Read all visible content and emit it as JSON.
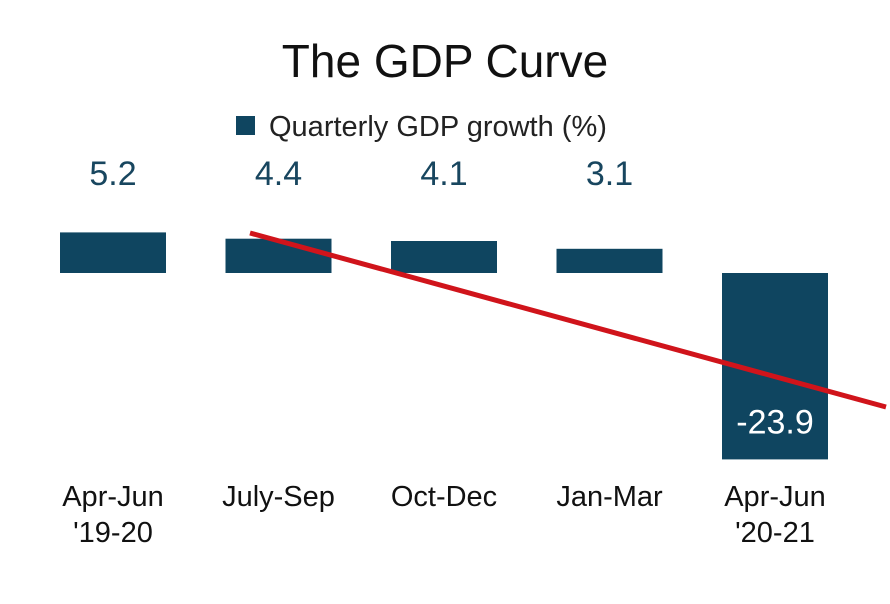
{
  "chart_data": {
    "type": "bar",
    "title": "The GDP Curve",
    "legend": {
      "position": "top",
      "entries": [
        "Quarterly GDP growth (%)"
      ]
    },
    "categories": [
      [
        "Apr-Jun",
        "'19-20"
      ],
      [
        "July-Sep"
      ],
      [
        "Oct-Dec"
      ],
      [
        "Jan-Mar"
      ],
      [
        "Apr-Jun",
        "'20-21"
      ]
    ],
    "series": [
      {
        "name": "Quarterly GDP growth (%)",
        "color": "#0f4560",
        "values": [
          5.2,
          4.4,
          4.1,
          3.1,
          -23.9
        ]
      }
    ],
    "value_labels": [
      "5.2",
      "4.4",
      "4.1",
      "3.1",
      "-23.9"
    ],
    "trend_line": {
      "color": "#d0141b",
      "description": "descending trend line"
    },
    "grid": false,
    "axes_visible": false
  }
}
